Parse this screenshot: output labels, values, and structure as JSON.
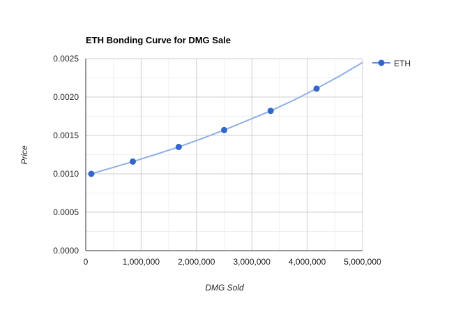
{
  "chart_data": {
    "type": "line",
    "title": "ETH Bonding Curve for DMG Sale",
    "xlabel": "DMG Sold",
    "ylabel": "Price",
    "xlim": [
      0,
      5000000
    ],
    "ylim": [
      0,
      0.0025
    ],
    "x_ticks": [
      0,
      1000000,
      2000000,
      3000000,
      4000000,
      5000000
    ],
    "x_tick_labels": [
      "0",
      "1,000,000",
      "2,000,000",
      "3,000,000",
      "4,000,000",
      "5,000,000"
    ],
    "y_ticks": [
      0,
      0.0005,
      0.001,
      0.0015,
      0.002,
      0.0025
    ],
    "y_tick_labels": [
      "0.0000",
      "0.0005",
      "0.0010",
      "0.0015",
      "0.0020",
      "0.0025"
    ],
    "grid": true,
    "legend_position": "right",
    "series": [
      {
        "name": "ETH",
        "color": "#3366cc",
        "line_color": "#8fb0e6",
        "points": [
          {
            "x": 100000,
            "y": 0.001
          },
          {
            "x": 850000,
            "y": 0.00116
          },
          {
            "x": 1680000,
            "y": 0.00135
          },
          {
            "x": 2500000,
            "y": 0.00157
          },
          {
            "x": 3340000,
            "y": 0.00182
          },
          {
            "x": 4170000,
            "y": 0.00211
          }
        ],
        "curve": [
          {
            "x": 100000,
            "y": 0.001
          },
          {
            "x": 500000,
            "y": 0.001085
          },
          {
            "x": 850000,
            "y": 0.00116
          },
          {
            "x": 1250000,
            "y": 0.00125
          },
          {
            "x": 1680000,
            "y": 0.00135
          },
          {
            "x": 2100000,
            "y": 0.00146
          },
          {
            "x": 2500000,
            "y": 0.00157
          },
          {
            "x": 2920000,
            "y": 0.001695
          },
          {
            "x": 3340000,
            "y": 0.00182
          },
          {
            "x": 3760000,
            "y": 0.00196
          },
          {
            "x": 4170000,
            "y": 0.00211
          },
          {
            "x": 4600000,
            "y": 0.00228
          },
          {
            "x": 5000000,
            "y": 0.00245
          }
        ]
      }
    ]
  }
}
